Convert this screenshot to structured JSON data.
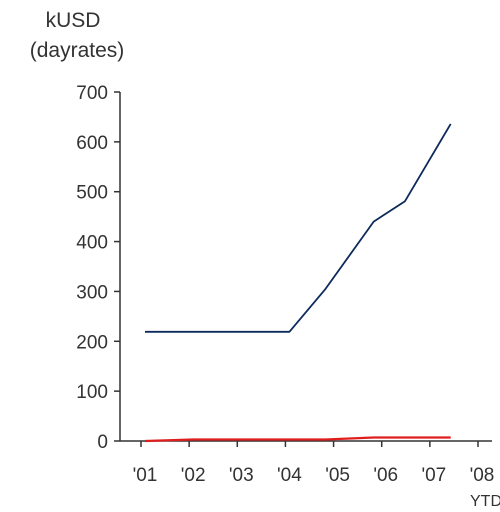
{
  "chart_data": {
    "type": "line",
    "ylabel_lines": [
      "kUSD",
      "(dayrates)"
    ],
    "xlabel": "",
    "categories": [
      "'01",
      "'02",
      "'03",
      "'04",
      "'05",
      "'06",
      "'07",
      "'08"
    ],
    "category_sublabels": [
      "",
      "",
      "",
      "",
      "",
      "",
      "",
      "YTD"
    ],
    "x": [
      2001,
      2002,
      2003,
      2004,
      2004.75,
      2005.75,
      2006.4,
      2007.35
    ],
    "series": [
      {
        "color": "#0d2a5c",
        "values": [
          219,
          219,
          219,
          219,
          305,
          440,
          481,
          636
        ]
      },
      {
        "color": "#e01e1e",
        "values": [
          0,
          3,
          3,
          3,
          3,
          7,
          7,
          7
        ]
      }
    ],
    "ylim": [
      0,
      700
    ],
    "yticks": [
      0,
      100,
      200,
      300,
      400,
      500,
      600,
      700
    ],
    "grid": false,
    "legend": "none"
  }
}
